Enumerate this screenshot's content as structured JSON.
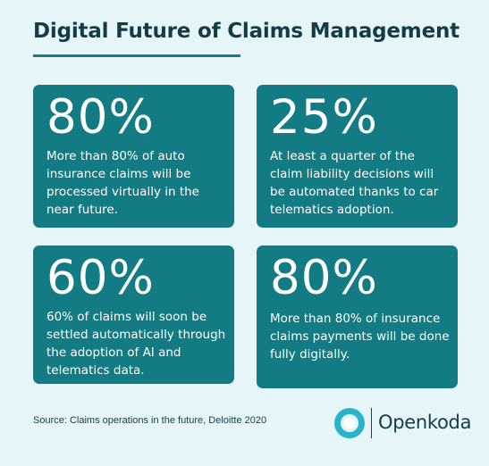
{
  "title": "Digital Future of Claims Management",
  "cards": [
    {
      "percent": "80%",
      "text": "More than 80% of auto insurance claims will be processed virtually in the near future."
    },
    {
      "percent": "25%",
      "text": "At least a quarter of the claim liability decisions will be automated thanks to car telematics adoption."
    },
    {
      "percent": "60%",
      "text": "60% of claims will soon be settled automatically through the adoption of AI and telematics data."
    },
    {
      "percent": "80%",
      "text": "More than 80% of insurance claims payments will be done fully digitally."
    }
  ],
  "source": "Source: Claims operations in the future, Deloitte 2020",
  "brand": {
    "name": "Openkoda",
    "logo_icon": "openkoda-logo-icon"
  },
  "colors": {
    "background": "#e6f5f8",
    "card": "#137b84",
    "title": "#143c47",
    "accent": "#1b7a86",
    "logo_cyan": "#2ab4c9"
  }
}
